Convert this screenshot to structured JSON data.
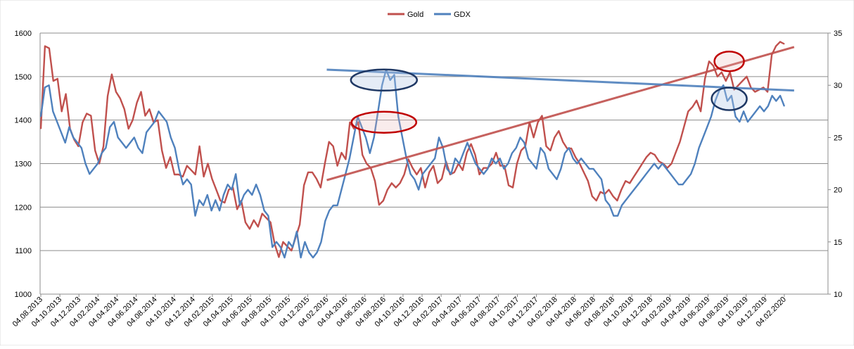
{
  "chart_data": {
    "type": "line",
    "title": "",
    "legend": {
      "position": "top",
      "items": [
        {
          "name": "Gold",
          "color": "#c0504d"
        },
        {
          "name": "GDX",
          "color": "#4f81bd"
        }
      ]
    },
    "y_left": {
      "label": "",
      "range": [
        1000,
        1600
      ],
      "ticks": [
        "1000",
        "1100",
        "1200",
        "1300",
        "1400",
        "1500",
        "1600"
      ]
    },
    "y_right": {
      "label": "",
      "range": [
        10,
        35
      ],
      "ticks": [
        "10",
        "15",
        "20",
        "25",
        "30",
        "35"
      ]
    },
    "grid": "horizontal",
    "x_ticks": [
      "04.08.2013",
      "04.10.2013",
      "04.12.2013",
      "04.02.2014",
      "04.04.2014",
      "04.06.2014",
      "04.08.2014",
      "04.10.2014",
      "04.12.2014",
      "04.02.2015",
      "04.04.2015",
      "04.06.2015",
      "04.08.2015",
      "04.10.2015",
      "04.12.2015",
      "04.02.2016",
      "04.04.2016",
      "04.06.2016",
      "04.08.2016",
      "04.10.2016",
      "04.12.2016",
      "04.02.2017",
      "04.04.2017",
      "04.06.2017",
      "04.08.2017",
      "04.10.2017",
      "04.12.2017",
      "04.02.2018",
      "04.04.2018",
      "04.06.2018",
      "04.08.2018",
      "04.10.2018",
      "04.12.2018",
      "04.02.2019",
      "04.04.2019",
      "04.06.2019",
      "04.08.2019",
      "04.10.2019",
      "04.12.2019",
      "04.02.2020"
    ],
    "series": [
      {
        "name": "Gold",
        "axis": "left",
        "color": "#c0504d",
        "values": [
          1380,
          1570,
          1565,
          1490,
          1495,
          1420,
          1460,
          1380,
          1355,
          1340,
          1395,
          1415,
          1410,
          1330,
          1300,
          1340,
          1455,
          1505,
          1465,
          1450,
          1425,
          1380,
          1400,
          1440,
          1465,
          1410,
          1425,
          1395,
          1400,
          1330,
          1290,
          1315,
          1275,
          1275,
          1270,
          1295,
          1285,
          1275,
          1340,
          1270,
          1300,
          1265,
          1240,
          1215,
          1210,
          1240,
          1245,
          1195,
          1215,
          1165,
          1150,
          1170,
          1155,
          1185,
          1175,
          1165,
          1115,
          1085,
          1120,
          1110,
          1100,
          1130,
          1160,
          1250,
          1280,
          1280,
          1265,
          1245,
          1300,
          1350,
          1340,
          1295,
          1325,
          1310,
          1395,
          1380,
          1395,
          1320,
          1300,
          1290,
          1260,
          1205,
          1215,
          1240,
          1255,
          1245,
          1255,
          1275,
          1310,
          1290,
          1275,
          1290,
          1245,
          1280,
          1295,
          1255,
          1265,
          1305,
          1275,
          1280,
          1300,
          1285,
          1325,
          1345,
          1320,
          1275,
          1290,
          1290,
          1300,
          1325,
          1295,
          1295,
          1250,
          1245,
          1300,
          1330,
          1340,
          1395,
          1360,
          1395,
          1410,
          1340,
          1330,
          1360,
          1375,
          1350,
          1335,
          1335,
          1315,
          1300,
          1280,
          1260,
          1225,
          1215,
          1235,
          1230,
          1240,
          1225,
          1215,
          1240,
          1260,
          1255,
          1270,
          1285,
          1300,
          1315,
          1325,
          1320,
          1305,
          1300,
          1290,
          1300,
          1325,
          1350,
          1385,
          1420,
          1430,
          1445,
          1420,
          1495,
          1535,
          1525,
          1500,
          1510,
          1490,
          1510,
          1470,
          1480,
          1490,
          1500,
          1475,
          1465,
          1470,
          1475,
          1465,
          1550,
          1570,
          1580,
          1575
        ]
      },
      {
        "name": "GDX",
        "axis": "right",
        "color": "#4f81bd",
        "values": [
          27,
          29.8,
          30,
          27.5,
          26.5,
          25.5,
          24.5,
          26,
          25,
          24.5,
          24,
          22.5,
          21.5,
          22,
          22.5,
          23.5,
          24,
          26,
          26.5,
          25,
          24.5,
          24,
          24.5,
          25,
          24,
          23.5,
          25.5,
          26,
          26.5,
          27.5,
          27,
          26.5,
          25,
          24,
          22,
          20.5,
          21,
          20.5,
          17.5,
          19,
          18.5,
          19.5,
          18,
          19,
          18,
          19.5,
          20.5,
          20,
          21.5,
          18.5,
          19.5,
          20,
          19.5,
          20.5,
          19.5,
          18,
          17.5,
          14.5,
          15,
          14.5,
          13.5,
          15,
          14.5,
          16,
          13.5,
          15,
          14,
          13.5,
          14,
          15,
          17,
          18,
          18.5,
          18.5,
          20,
          21.5,
          23,
          25,
          27,
          26,
          25,
          23.5,
          25,
          27.5,
          30,
          31.5,
          30.5,
          31,
          27,
          25,
          23,
          21.5,
          21,
          20,
          21.5,
          22,
          22.5,
          23,
          25,
          24,
          22,
          21.5,
          23,
          22.5,
          23.5,
          24.5,
          23.5,
          22.5,
          22,
          21.5,
          22,
          23,
          22.5,
          23,
          22,
          22.5,
          23.5,
          24,
          25,
          24.5,
          23,
          22.5,
          22,
          24,
          23.5,
          22,
          21.5,
          21,
          22,
          23.5,
          24,
          23,
          22.5,
          23,
          22.5,
          22,
          22,
          21.5,
          21,
          19,
          18.5,
          17.5,
          17.5,
          18.5,
          19,
          19.5,
          20,
          20.5,
          21,
          21.5,
          22,
          22.5,
          22,
          22.5,
          22,
          21.5,
          21,
          20.5,
          20.5,
          21,
          21.5,
          22.5,
          24,
          25,
          26,
          27,
          28.5,
          29.5,
          30,
          28.5,
          29,
          27,
          26.5,
          27.5,
          26.5,
          27,
          27.5,
          28,
          27.5,
          28,
          29,
          28.5,
          29,
          28
        ]
      }
    ],
    "annotations": [
      {
        "type": "trendline",
        "series": "Gold",
        "color": "#c0504d",
        "from": [
          "04.02.2016",
          1262
        ],
        "to": [
          "04.02.2020",
          1568
        ]
      },
      {
        "type": "trendline",
        "series": "GDX",
        "color": "#4f81bd",
        "from": [
          "04.02.2016",
          31.5
        ],
        "to": [
          "04.02.2020",
          29.5
        ]
      },
      {
        "type": "ellipse",
        "series": "Gold",
        "color": "#c00000",
        "at": [
          "04.08.2016",
          1395
        ]
      },
      {
        "type": "ellipse",
        "series": "GDX",
        "color": "#1f3864",
        "at": [
          "04.08.2016",
          30.5
        ]
      },
      {
        "type": "ellipse",
        "series": "Gold",
        "color": "#c00000",
        "at": [
          "04.08.2019",
          1535
        ]
      },
      {
        "type": "ellipse",
        "series": "GDX",
        "color": "#1f3864",
        "at": [
          "04.08.2019",
          28.7
        ]
      }
    ]
  }
}
